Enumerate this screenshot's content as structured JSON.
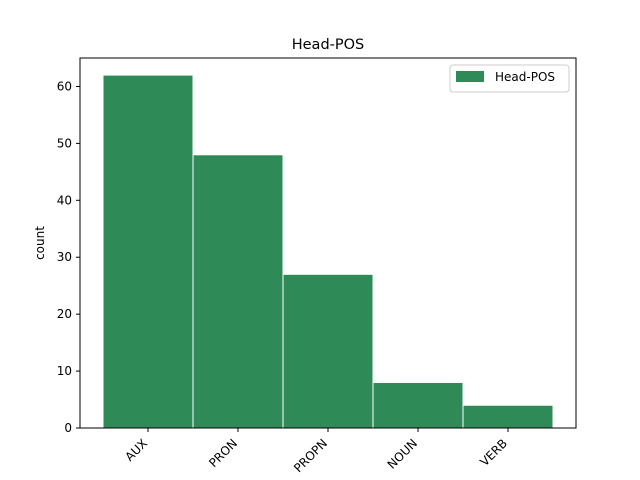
{
  "chart_data": {
    "type": "bar",
    "title": "Head-POS",
    "xlabel": "",
    "ylabel": "count",
    "categories": [
      "AUX",
      "PRON",
      "PROPN",
      "NOUN",
      "VERB"
    ],
    "series": [
      {
        "name": "Head-POS",
        "values": [
          62,
          48,
          27,
          8,
          4
        ]
      }
    ],
    "ylim": [
      0,
      65
    ],
    "yticks": [
      0,
      10,
      20,
      30,
      40,
      50,
      60
    ],
    "grid": false,
    "legend": "top-right",
    "bar_color": "#2e8b57",
    "bar_edge_color": "#ffffff"
  }
}
